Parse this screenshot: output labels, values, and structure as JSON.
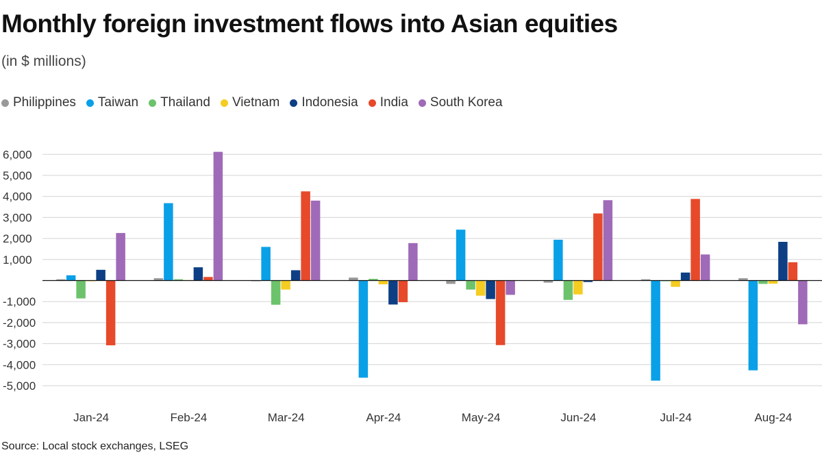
{
  "chart_data": {
    "type": "bar",
    "title": "Monthly foreign investment flows into Asian equities",
    "subtitle": "(in $ millions)",
    "categories": [
      "Jan-24",
      "Feb-24",
      "Mar-24",
      "Apr-24",
      "May-24",
      "Jun-24",
      "Jul-24",
      "Aug-24"
    ],
    "series": [
      {
        "name": "Philippines",
        "color": "#999999",
        "values": [
          60,
          110,
          -30,
          140,
          -160,
          -100,
          60,
          110
        ]
      },
      {
        "name": "Taiwan",
        "color": "#0aa0e8",
        "values": [
          250,
          3680,
          1600,
          -4620,
          2420,
          1940,
          -4760,
          -4270
        ]
      },
      {
        "name": "Thailand",
        "color": "#6cc36c",
        "values": [
          -850,
          60,
          -1150,
          80,
          -430,
          -920,
          -20,
          -160
        ]
      },
      {
        "name": "Vietnam",
        "color": "#f5cc22",
        "values": [
          -20,
          20,
          -430,
          -180,
          -720,
          -660,
          -300,
          -150
        ]
      },
      {
        "name": "Indonesia",
        "color": "#0e3f85",
        "values": [
          510,
          630,
          490,
          -1140,
          -880,
          -70,
          380,
          1840
        ]
      },
      {
        "name": "India",
        "color": "#e64a2a",
        "values": [
          -3080,
          170,
          4240,
          -1030,
          -3070,
          3190,
          3880,
          870
        ]
      },
      {
        "name": "South Korea",
        "color": "#9f6ab8",
        "values": [
          2260,
          6120,
          3800,
          1780,
          -680,
          3820,
          1240,
          -2080
        ]
      }
    ],
    "ylim": [
      -6000,
      7000
    ],
    "yticks": [
      -5000,
      -4000,
      -3000,
      -2000,
      -1000,
      1000,
      2000,
      3000,
      4000,
      5000,
      6000
    ],
    "ytick_labels": [
      "-5,000",
      "-4,000",
      "-3,000",
      "-2,000",
      "-1,000",
      "1,000",
      "2,000",
      "3,000",
      "4,000",
      "5,000",
      "6,000"
    ],
    "xlabel": "",
    "ylabel": "",
    "legend": "top-left",
    "grid": true
  },
  "source": "Source: Local stock exchanges, LSEG"
}
